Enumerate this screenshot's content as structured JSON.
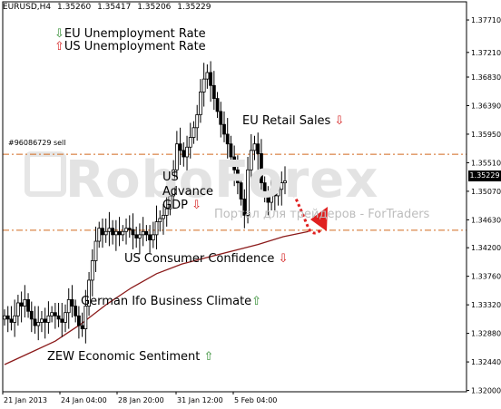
{
  "header": {
    "symbol": "EURUSD,H4",
    "open": "1.35260",
    "high": "1.35417",
    "low": "1.35206",
    "close": "1.35229"
  },
  "order_label": "#96086729 sell",
  "current_price_label": "1.35229",
  "watermark": {
    "logo": "RoboForex",
    "tagline": "Портал для трейдеров - ForTraders"
  },
  "events": {
    "eu_unemployment": {
      "arrow": "⇩",
      "text": "EU Unemployment Rate"
    },
    "us_unemployment": {
      "arrow": "⇧",
      "text": "US Unemployment Rate"
    },
    "eu_retail": {
      "text": "EU Retail Sales",
      "arrow": "⇩"
    },
    "us_gdp_1": "US",
    "us_gdp_2": "Advance",
    "us_gdp_3": "GDP",
    "us_gdp_arrow": "⇩",
    "us_consumer": {
      "text": "US Consumer Confidence",
      "arrow": "⇩"
    },
    "german_ifo": {
      "text": "German Ifo Business Climate",
      "arrow": "⇧"
    },
    "zew": {
      "text": "ZEW Economic Sentiment",
      "arrow": "⇧"
    }
  },
  "colors": {
    "candle": "#000000",
    "ma_line": "#8b1a1a",
    "dash_line": "#d2691e",
    "arrow": "#e02020",
    "up_arrow": "#2e8b2e",
    "down_arrow": "#d42020"
  },
  "chart_data": {
    "type": "candlestick",
    "ylim": [
      1.3198,
      1.3799
    ],
    "y_ticks": [
      "1.37710",
      "1.37210",
      "1.36830",
      "1.36390",
      "1.35950",
      "1.35510",
      "1.35070",
      "1.34630",
      "1.34200",
      "1.33760",
      "1.33320",
      "1.32880",
      "1.32440",
      "1.32000"
    ],
    "x_ticks": [
      "21 Jan 2013",
      "24 Jan 04:00",
      "28 Jan 20:00",
      "31 Jan 12:00",
      "5 Feb 04:00"
    ],
    "horizontal_lines": [
      1.3564,
      1.3447
    ],
    "close_series": [
      1.3315,
      1.331,
      1.3305,
      1.3315,
      1.3335,
      1.333,
      1.334,
      1.3322,
      1.331,
      1.33,
      1.3305,
      1.331,
      1.3305,
      1.3315,
      1.332,
      1.3315,
      1.331,
      1.3305,
      1.332,
      1.334,
      1.333,
      1.3315,
      1.33,
      1.3295,
      1.333,
      1.337,
      1.34,
      1.343,
      1.345,
      1.344,
      1.3445,
      1.345,
      1.344,
      1.3445,
      1.344,
      1.3445,
      1.345,
      1.3448,
      1.344,
      1.3435,
      1.344,
      1.3445,
      1.344,
      1.3432,
      1.344,
      1.346,
      1.3465,
      1.347,
      1.348,
      1.35,
      1.354,
      1.358,
      1.357,
      1.356,
      1.3575,
      1.359,
      1.3605,
      1.3625,
      1.366,
      1.368,
      1.369,
      1.367,
      1.365,
      1.363,
      1.361,
      1.3595,
      1.358,
      1.356,
      1.354,
      1.352,
      1.3495,
      1.347,
      1.354,
      1.357,
      1.358,
      1.3565,
      1.352,
      1.35,
      1.349,
      1.351,
      1.35,
      1.351,
      1.352,
      1.3523
    ],
    "ma_series": [
      1.324,
      1.3258,
      1.3276,
      1.3302,
      1.3332,
      1.3358,
      1.338,
      1.3395,
      1.3405,
      1.3415,
      1.3425,
      1.3437,
      1.3445
    ]
  }
}
